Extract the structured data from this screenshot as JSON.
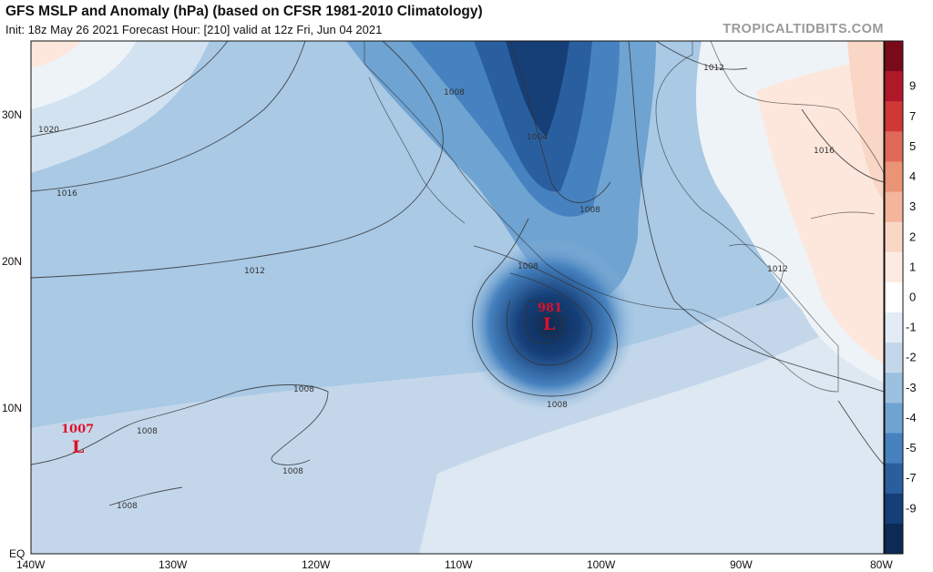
{
  "header": {
    "title": "GFS MSLP and Anomaly (hPa) (based on CFSR 1981-2010 Climatology)",
    "subtitle": "Init: 18z May 26 2021   Forecast Hour: [210]   valid at 12z Fri, Jun 04 2021",
    "brand": "TROPICALTIDBITS.COM"
  },
  "map": {
    "lon_labels": [
      "140W",
      "130W",
      "120W",
      "110W",
      "100W",
      "90W",
      "80W"
    ],
    "lat_labels": [
      "30N",
      "20N",
      "10N",
      "EQ"
    ],
    "isobar_labels": [
      "1020",
      "1016",
      "1012",
      "1008",
      "1008",
      "1008",
      "1008",
      "1008",
      "1008",
      "1004",
      "1008",
      "1012",
      "1012",
      "1016"
    ],
    "lows": [
      {
        "pressure": "981",
        "symbol": "L"
      },
      {
        "pressure": "1007",
        "symbol": "L"
      }
    ]
  },
  "colorbar": {
    "ticks": [
      "9",
      "7",
      "5",
      "4",
      "3",
      "2",
      "1",
      "0",
      "-1",
      "-2",
      "-3",
      "-4",
      "-5",
      "-7",
      "-9"
    ],
    "colors": [
      "#7a0a1a",
      "#b0182a",
      "#d03838",
      "#e06a5a",
      "#eb9377",
      "#f3b59c",
      "#f9d6c5",
      "#fdebe2",
      "#ffffff",
      "#e3ecf5",
      "#c4d7ea",
      "#9cc0df",
      "#6fa3d1",
      "#4682bf",
      "#2a5f9f",
      "#163f78",
      "#0b2a55"
    ]
  }
}
